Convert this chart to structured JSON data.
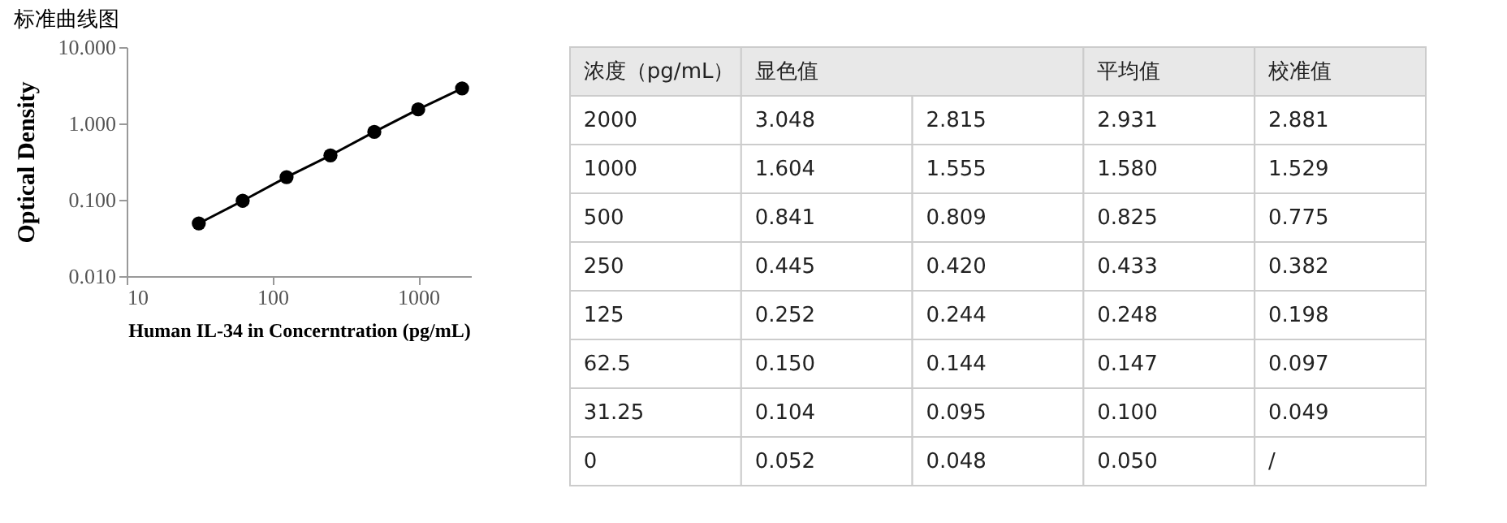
{
  "chart_data": [
    {
      "type": "scatter",
      "title": "标准曲线图",
      "xlabel": "Human IL-34 in Concerntration (pg/mL)",
      "ylabel": "Optical Density",
      "log": "xy",
      "grid": false,
      "marker": "circle",
      "line_style": "solid",
      "xlim": [
        10,
        2300
      ],
      "xticks": [
        10,
        100,
        {
          "value": 1000,
          "label": "1000"
        }
      ],
      "ylim": [
        0.01,
        10
      ],
      "yticks": [
        {
          "value": 0.01,
          "label": "0.010"
        },
        {
          "value": 0.1,
          "label": "0.100"
        },
        {
          "value": 1,
          "label": "1.000"
        },
        {
          "value": 10,
          "label": "10.000"
        }
      ],
      "series": [
        {
          "type": "line",
          "color": "#000000",
          "x": [
            31.25,
            62.5,
            125,
            250,
            500,
            1000,
            2000
          ],
          "values": [
            0.049,
            0.097,
            0.198,
            0.382,
            0.775,
            1.529,
            2.881
          ]
        }
      ]
    },
    {
      "type": "other",
      "cell_labels": [
        [
          "浓度（pg/mL）",
          "显色值",
          null,
          "平均值",
          "校准值"
        ],
        [
          "2000",
          "3.048",
          "2.815",
          "2.931",
          "2.881"
        ],
        [
          "1000",
          "1.604",
          "1.555",
          "1.580",
          "1.529"
        ],
        [
          "500",
          "0.841",
          "0.809",
          "0.825",
          "0.775"
        ],
        [
          "250",
          "0.445",
          "0.420",
          "0.433",
          "0.382"
        ],
        [
          "125",
          "0.252",
          "0.244",
          "0.248",
          "0.198"
        ],
        [
          "62.5",
          "0.150",
          "0.144",
          "0.147",
          "0.097"
        ],
        [
          "31.25",
          "0.104",
          "0.095",
          "0.100",
          "0.049"
        ],
        [
          "0",
          "0.052",
          "0.048",
          "0.050",
          "/"
        ]
      ]
    }
  ]
}
